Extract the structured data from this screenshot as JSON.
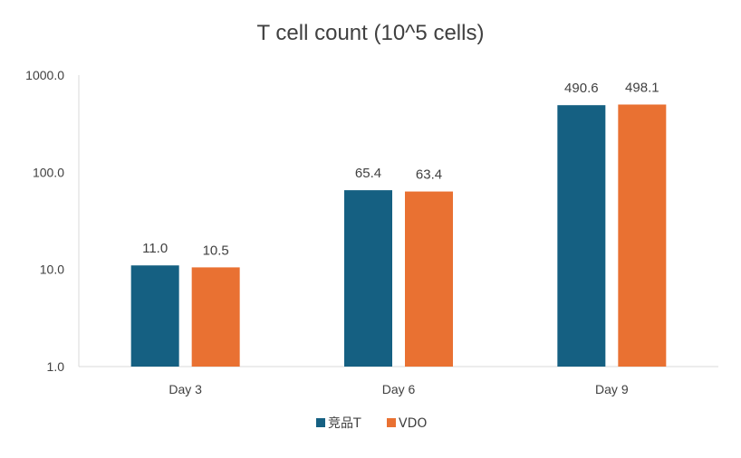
{
  "chart_data": {
    "type": "bar",
    "title": "T cell count (10^5 cells)",
    "categories": [
      "Day 3",
      "Day 6",
      "Day 9"
    ],
    "series": [
      {
        "name": "竞品T",
        "values": [
          11.0,
          65.4,
          490.6
        ],
        "color": "#156082",
        "labels": [
          "11.0",
          "65.4",
          "490.6"
        ]
      },
      {
        "name": "VDO",
        "values": [
          10.5,
          63.4,
          498.1
        ],
        "color": "#E97132",
        "labels": [
          "10.5",
          "63.4",
          "498.1"
        ]
      }
    ],
    "yscale": "log",
    "ylim": [
      1,
      1000
    ],
    "yticks": [
      1,
      10,
      100,
      1000
    ],
    "ytick_labels": [
      "1.0",
      "10.0",
      "100.0",
      "1000.0"
    ],
    "grid": false,
    "legend_position": "bottom"
  }
}
